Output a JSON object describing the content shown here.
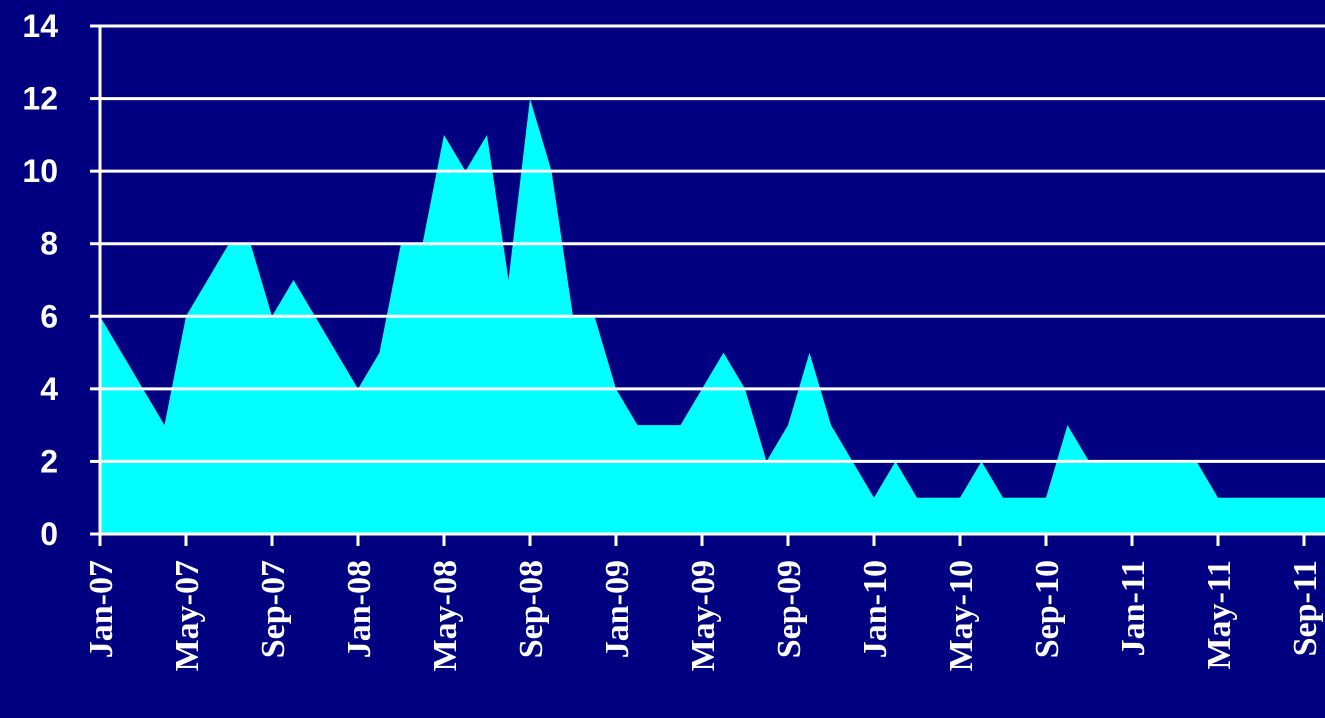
{
  "chart_data": {
    "type": "area",
    "x": [
      "Jan-07",
      "Feb-07",
      "Mar-07",
      "Apr-07",
      "May-07",
      "Jun-07",
      "Jul-07",
      "Aug-07",
      "Sep-07",
      "Oct-07",
      "Nov-07",
      "Dec-07",
      "Jan-08",
      "Feb-08",
      "Mar-08",
      "Apr-08",
      "May-08",
      "Jun-08",
      "Jul-08",
      "Aug-08",
      "Sep-08",
      "Oct-08",
      "Nov-08",
      "Dec-08",
      "Jan-09",
      "Feb-09",
      "Mar-09",
      "Apr-09",
      "May-09",
      "Jun-09",
      "Jul-09",
      "Aug-09",
      "Sep-09",
      "Oct-09",
      "Nov-09",
      "Dec-09",
      "Jan-10",
      "Feb-10",
      "Mar-10",
      "Apr-10",
      "May-10",
      "Jun-10",
      "Jul-10",
      "Aug-10",
      "Sep-10",
      "Oct-10",
      "Nov-10",
      "Dec-10",
      "Jan-11",
      "Feb-11",
      "Mar-11",
      "Apr-11",
      "May-11",
      "Jun-11",
      "Jul-11",
      "Aug-11",
      "Sep-11",
      "Oct-11"
    ],
    "values": [
      6,
      5,
      4,
      3,
      6,
      7,
      8,
      8,
      6,
      7,
      6,
      5,
      4,
      5,
      8,
      8,
      11,
      10,
      11,
      7,
      12,
      10,
      6,
      6,
      4,
      3,
      3,
      3,
      4,
      5,
      4,
      2,
      3,
      5,
      3,
      2,
      1,
      2,
      1,
      1,
      1,
      2,
      1,
      1,
      1,
      3,
      2,
      2,
      2,
      2,
      2,
      2,
      1,
      1,
      1,
      1,
      1,
      1
    ],
    "x_tick_labels": [
      "Jan-07",
      "May-07",
      "Sep-07",
      "Jan-08",
      "May-08",
      "Sep-08",
      "Jan-09",
      "May-09",
      "Sep-09",
      "Jan-10",
      "May-10",
      "Sep-10",
      "Jan-11",
      "May-11",
      "Sep-11"
    ],
    "y_ticks": [
      0,
      2,
      4,
      6,
      8,
      10,
      12,
      14
    ],
    "ylim": [
      0,
      14
    ],
    "title": "",
    "xlabel": "",
    "ylabel": "",
    "grid": true,
    "legend": "none",
    "colors": {
      "background": "#000080",
      "fill": "#00ffff",
      "grid": "#ffffff",
      "text": "#ffffff"
    }
  }
}
